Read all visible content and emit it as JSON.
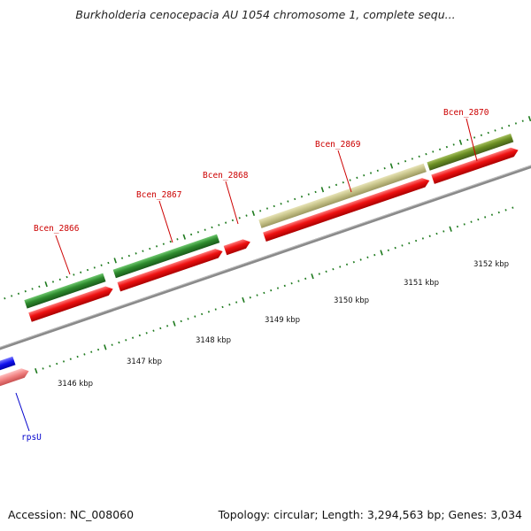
{
  "title": "Burkholderia cenocepacia AU 1054 chromosome 1, complete sequ...",
  "accession": "Accession: NC_008060",
  "summary": "Topology: circular; Length: 3,294,563 bp; Genes: 3,034",
  "colors": {
    "axis": "#8a8a8a",
    "tick": "#1e7a1e",
    "gene_green": "#2e8b2e",
    "gene_olive": "#6b8e23",
    "gene_khaki": "#c8c48a",
    "cds_red": "#ee1111",
    "cds_pink": "#f08080",
    "gene_blue": "#1111ee",
    "label_red": "#cc0000",
    "label_blue": "#0000cc"
  },
  "kbp_labels": [
    "3146 kbp",
    "3147 kbp",
    "3148 kbp",
    "3149 kbp",
    "3150 kbp",
    "3151 kbp",
    "3152 kbp"
  ],
  "gene_labels": [
    {
      "id": "bcen-2866",
      "text": "Bcen_2866"
    },
    {
      "id": "bcen-2867",
      "text": "Bcen_2867"
    },
    {
      "id": "bcen-2868",
      "text": "Bcen_2868"
    },
    {
      "id": "bcen-2869",
      "text": "Bcen_2869"
    },
    {
      "id": "bcen-2870",
      "text": "Bcen_2870"
    },
    {
      "id": "rpsu",
      "text": "rpsU"
    }
  ]
}
